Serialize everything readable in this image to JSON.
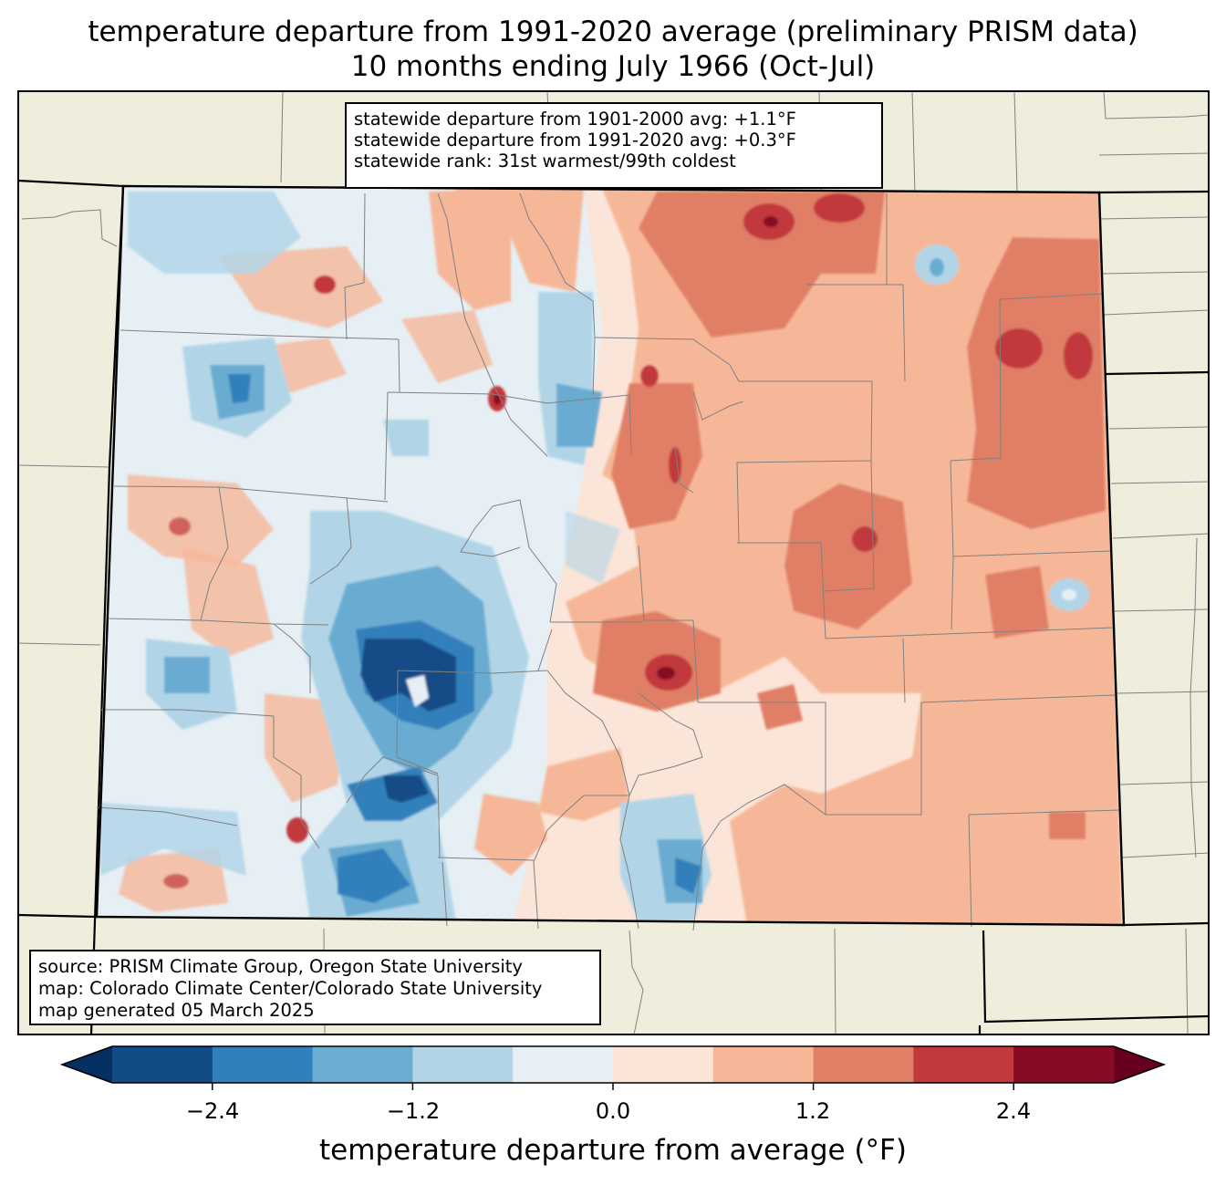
{
  "title": {
    "line1": "temperature departure from 1991-2020 average (preliminary PRISM data)",
    "line2": "10 months ending July 1966 (Oct-Jul)"
  },
  "stats": {
    "line1": "statewide departure from 1901-2000 avg: +1.1°F",
    "line2": "statewide departure from 1991-2020 avg: +0.3°F",
    "line3": "statewide rank: 31st warmest/99th coldest"
  },
  "credits": {
    "line1": "source: PRISM Climate Group, Oregon State University",
    "line2": "map: Colorado Climate Center/Colorado State University",
    "line3": "map generated 05 March 2025"
  },
  "colorbar": {
    "label": "temperature departure from average (°F)",
    "ticks": [
      "−2.4",
      "−1.2",
      "0.0",
      "1.2",
      "2.4"
    ],
    "bins": [
      {
        "min": -3.0,
        "max": -2.4,
        "color": "#134b87"
      },
      {
        "min": -2.4,
        "max": -1.8,
        "color": "#3280bb"
      },
      {
        "min": -1.8,
        "max": -1.2,
        "color": "#6bacd1"
      },
      {
        "min": -1.2,
        "max": -0.6,
        "color": "#b1d5e7"
      },
      {
        "min": -0.6,
        "max": 0.0,
        "color": "#e6eff4"
      },
      {
        "min": 0.0,
        "max": 0.6,
        "color": "#fbe5d8"
      },
      {
        "min": 0.6,
        "max": 1.2,
        "color": "#f6b799"
      },
      {
        "min": 1.2,
        "max": 1.8,
        "color": "#e07f66"
      },
      {
        "min": 1.8,
        "max": 2.4,
        "color": "#c1393c"
      },
      {
        "min": 2.4,
        "max": 3.0,
        "color": "#870b24"
      }
    ],
    "under_color": "#053061",
    "over_color": "#67001f"
  },
  "colors": {
    "land_background": "#efeedc",
    "state_border": "#000000",
    "county_border": "#808080"
  }
}
